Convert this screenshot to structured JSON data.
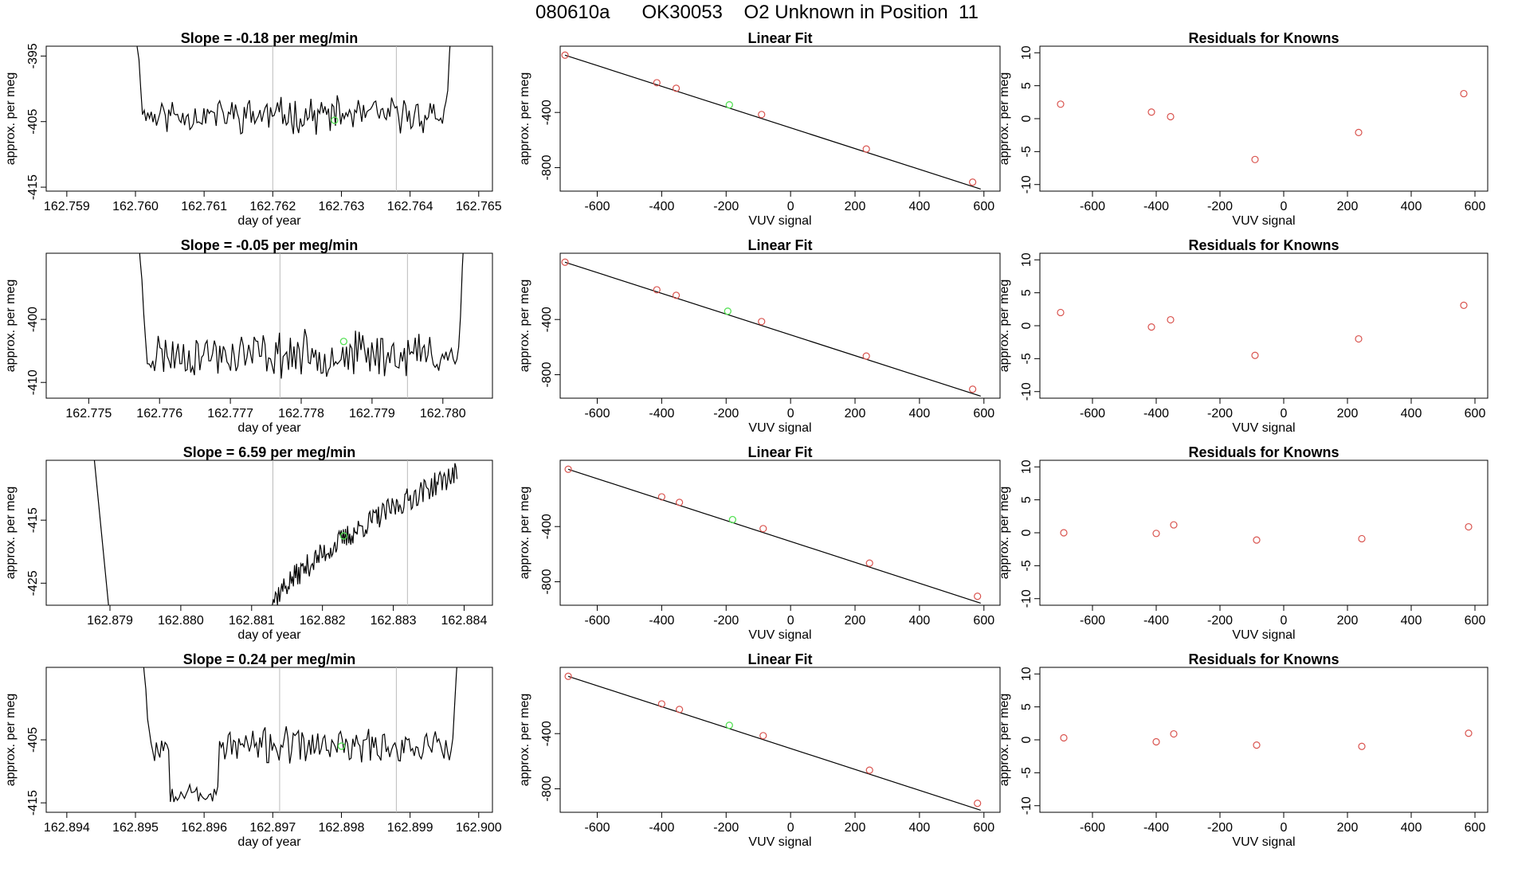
{
  "figure_title": "080610a      OK30053    O2 Unknown in Position  11",
  "colors": {
    "line": "#000000",
    "known": "#d9544f",
    "unknown": "#55e055",
    "guide": "#bbbbbb"
  },
  "chart_data": [
    {
      "type": "line",
      "title": "Slope =  -0.18  per meg/min",
      "xlabel": "day of year",
      "ylabel": "approx. per meg",
      "xlim": [
        162.7587,
        162.7652
      ],
      "ylim": [
        -415.6,
        -393.5
      ],
      "xticks": [
        162.759,
        162.76,
        162.761,
        162.762,
        162.763,
        162.764,
        162.765
      ],
      "xtick_labels": [
        "162.759",
        "162.760",
        "162.761",
        "162.762",
        "162.763",
        "162.764",
        "162.765"
      ],
      "yticks": [
        -395,
        -405,
        -415
      ],
      "ytick_labels": [
        "-395",
        "-405",
        "-415"
      ],
      "vlines": [
        162.762,
        162.7638
      ],
      "unknown_point": {
        "x": 162.7629,
        "y": -404.8
      },
      "trace": {
        "start": 162.76,
        "end": 162.7646,
        "cross_in": 162.76012,
        "cross_out": 162.76452,
        "mean": -404.0,
        "amp": 2.1,
        "seed": 11
      }
    },
    {
      "type": "scatter",
      "title": "Linear Fit",
      "xlabel": "VUV signal",
      "ylabel": "approx. per meg",
      "xlim": [
        -715,
        650
      ],
      "ylim": [
        -970,
        80
      ],
      "xticks": [
        -600,
        -400,
        -200,
        0,
        200,
        400,
        600
      ],
      "xtick_labels": [
        "-600",
        "-400",
        "-200",
        "0",
        "200",
        "400",
        "600"
      ],
      "yticks": [
        -400,
        -800
      ],
      "ytick_labels": [
        "-400",
        "-800"
      ],
      "fit_line": [
        [
          -700,
          15
        ],
        [
          590,
          -955
        ]
      ],
      "knowns": [
        [
          -700,
          15
        ],
        [
          -415,
          -185
        ],
        [
          -355,
          -225
        ],
        [
          -90,
          -415
        ],
        [
          235,
          -665
        ],
        [
          565,
          -905
        ]
      ],
      "unknown": [
        [
          -190,
          -345
        ]
      ]
    },
    {
      "type": "scatter",
      "title": "Residuals for Knowns",
      "xlabel": "VUV signal",
      "ylabel": "approx. per meg",
      "xlim": [
        -765,
        640
      ],
      "ylim": [
        -11,
        11
      ],
      "xticks": [
        -600,
        -400,
        -200,
        0,
        200,
        400,
        600
      ],
      "xtick_labels": [
        "-600",
        "-400",
        "-200",
        "0",
        "200",
        "400",
        "600"
      ],
      "yticks": [
        10,
        5,
        0,
        -5,
        -10
      ],
      "ytick_labels": [
        "10",
        "5",
        "0",
        "-5",
        "-10"
      ],
      "knowns": [
        [
          -700,
          2.2
        ],
        [
          -415,
          1.0
        ],
        [
          -355,
          0.3
        ],
        [
          -90,
          -6.2
        ],
        [
          235,
          -2.1
        ],
        [
          565,
          3.8
        ]
      ]
    },
    {
      "type": "line",
      "title": "Slope =  -0.05  per meg/min",
      "xlabel": "day of year",
      "ylabel": "approx. per meg",
      "xlim": [
        162.7744,
        162.7807
      ],
      "ylim": [
        -412.5,
        -389.5
      ],
      "xticks": [
        162.775,
        162.776,
        162.777,
        162.778,
        162.779,
        162.78
      ],
      "xtick_labels": [
        "162.775",
        "162.776",
        "162.777",
        "162.778",
        "162.779",
        "162.780"
      ],
      "yticks": [
        -400,
        -410
      ],
      "ytick_labels": [
        "-400",
        "-410"
      ],
      "vlines": [
        162.7777,
        162.7795
      ],
      "unknown_point": {
        "x": 162.7786,
        "y": -403.5
      },
      "trace": {
        "start": 162.7757,
        "end": 162.7803,
        "cross_in": 162.77582,
        "cross_out": 162.78022,
        "mean": -405.5,
        "amp": 2.8,
        "seed": 23
      }
    },
    {
      "type": "scatter",
      "title": "Linear Fit",
      "xlabel": "VUV signal",
      "ylabel": "approx. per meg",
      "xlim": [
        -715,
        650
      ],
      "ylim": [
        -970,
        80
      ],
      "xticks": [
        -600,
        -400,
        -200,
        0,
        200,
        400,
        600
      ],
      "xtick_labels": [
        "-600",
        "-400",
        "-200",
        "0",
        "200",
        "400",
        "600"
      ],
      "yticks": [
        -400,
        -800
      ],
      "ytick_labels": [
        "-400",
        "-800"
      ],
      "fit_line": [
        [
          -700,
          15
        ],
        [
          590,
          -955
        ]
      ],
      "knowns": [
        [
          -700,
          15
        ],
        [
          -415,
          -185
        ],
        [
          -355,
          -225
        ],
        [
          -90,
          -415
        ],
        [
          235,
          -665
        ],
        [
          565,
          -905
        ]
      ],
      "unknown": [
        [
          -195,
          -340
        ]
      ]
    },
    {
      "type": "scatter",
      "title": "Residuals for Knowns",
      "xlabel": "VUV signal",
      "ylabel": "approx. per meg",
      "xlim": [
        -765,
        640
      ],
      "ylim": [
        -11,
        11
      ],
      "xticks": [
        -600,
        -400,
        -200,
        0,
        200,
        400,
        600
      ],
      "xtick_labels": [
        "-600",
        "-400",
        "-200",
        "0",
        "200",
        "400",
        "600"
      ],
      "yticks": [
        10,
        5,
        0,
        -5,
        -10
      ],
      "ytick_labels": [
        "10",
        "5",
        "0",
        "-5",
        "-10"
      ],
      "knowns": [
        [
          -700,
          2.0
        ],
        [
          -415,
          -0.2
        ],
        [
          -355,
          0.9
        ],
        [
          -90,
          -4.5
        ],
        [
          235,
          -2.0
        ],
        [
          565,
          3.1
        ]
      ]
    },
    {
      "type": "line",
      "title": "Slope =  6.59  per meg/min",
      "xlabel": "day of year",
      "ylabel": "approx. per meg",
      "xlim": [
        162.8781,
        162.8844
      ],
      "ylim": [
        -428.5,
        -405.5
      ],
      "xticks": [
        162.879,
        162.88,
        162.881,
        162.882,
        162.883,
        162.884
      ],
      "xtick_labels": [
        "162.879",
        "162.880",
        "162.881",
        "162.882",
        "162.883",
        "162.884"
      ],
      "yticks": [
        -415,
        -425
      ],
      "ytick_labels": [
        "-415",
        "-425"
      ],
      "vlines": [
        162.8813,
        162.8832
      ],
      "unknown_point": {
        "x": 162.8823,
        "y": -417.5
      },
      "trace": {
        "start": 162.8812,
        "end": 162.8839,
        "from": -430,
        "to": -407.5,
        "amp": 1.2,
        "seed": 37
      },
      "steep_segment": [
        [
          162.87878,
          -405.5
        ],
        [
          162.87898,
          -428.5
        ]
      ]
    },
    {
      "type": "scatter",
      "title": "Linear Fit",
      "xlabel": "VUV signal",
      "ylabel": "approx. per meg",
      "xlim": [
        -715,
        650
      ],
      "ylim": [
        -970,
        80
      ],
      "xticks": [
        -600,
        -400,
        -200,
        0,
        200,
        400,
        600
      ],
      "xtick_labels": [
        "-600",
        "-400",
        "-200",
        "0",
        "200",
        "400",
        "600"
      ],
      "yticks": [
        -400,
        -800
      ],
      "ytick_labels": [
        "-400",
        "-800"
      ],
      "fit_line": [
        [
          -690,
          15
        ],
        [
          590,
          -955
        ]
      ],
      "knowns": [
        [
          -690,
          15
        ],
        [
          -400,
          -185
        ],
        [
          -345,
          -225
        ],
        [
          -85,
          -415
        ],
        [
          245,
          -665
        ],
        [
          580,
          -905
        ]
      ],
      "unknown": [
        [
          -180,
          -350
        ]
      ]
    },
    {
      "type": "scatter",
      "title": "Residuals for Knowns",
      "xlabel": "VUV signal",
      "ylabel": "approx. per meg",
      "xlim": [
        -765,
        640
      ],
      "ylim": [
        -11,
        11
      ],
      "xticks": [
        -600,
        -400,
        -200,
        0,
        200,
        400,
        600
      ],
      "xtick_labels": [
        "-600",
        "-400",
        "-200",
        "0",
        "200",
        "400",
        "600"
      ],
      "knowns": [
        [
          -690,
          0.0
        ],
        [
          -400,
          -0.1
        ],
        [
          -345,
          1.2
        ],
        [
          -85,
          -1.1
        ],
        [
          245,
          -0.9
        ],
        [
          580,
          0.9
        ]
      ],
      "yticks": [
        10,
        5,
        0,
        -5,
        -10
      ],
      "ytick_labels": [
        "10",
        "5",
        "0",
        "-5",
        "-10"
      ]
    },
    {
      "type": "line",
      "title": "Slope =  0.24  per meg/min",
      "xlabel": "day of year",
      "ylabel": "approx. per meg",
      "xlim": [
        162.8937,
        162.9002
      ],
      "ylim": [
        -416.5,
        -393.5
      ],
      "xticks": [
        162.894,
        162.895,
        162.896,
        162.897,
        162.898,
        162.899,
        162.9
      ],
      "xtick_labels": [
        "162.894",
        "162.895",
        "162.896",
        "162.897",
        "162.898",
        "162.899",
        "162.900"
      ],
      "yticks": [
        -405,
        -415
      ],
      "ytick_labels": [
        "-405",
        "-415"
      ],
      "vlines": [
        162.8971,
        162.8988
      ],
      "unknown_point": {
        "x": 162.898,
        "y": -406.0
      },
      "trace": {
        "start": 162.8951,
        "end": 162.8997,
        "cross_in": 162.89522,
        "cross_out": 162.89962,
        "mean": -406.0,
        "amp": 2.2,
        "seed": 53,
        "dip": [
          162.8955,
          162.8962,
          -413.5
        ]
      }
    },
    {
      "type": "scatter",
      "title": "Linear Fit",
      "xlabel": "VUV signal",
      "ylabel": "approx. per meg",
      "xlim": [
        -715,
        650
      ],
      "ylim": [
        -970,
        80
      ],
      "xticks": [
        -600,
        -400,
        -200,
        0,
        200,
        400,
        600
      ],
      "xtick_labels": [
        "-600",
        "-400",
        "-200",
        "0",
        "200",
        "400",
        "600"
      ],
      "yticks": [
        -400,
        -800
      ],
      "ytick_labels": [
        "-400",
        "-800"
      ],
      "fit_line": [
        [
          -690,
          15
        ],
        [
          590,
          -955
        ]
      ],
      "knowns": [
        [
          -690,
          15
        ],
        [
          -400,
          -185
        ],
        [
          -345,
          -225
        ],
        [
          -85,
          -415
        ],
        [
          245,
          -665
        ],
        [
          580,
          -905
        ]
      ],
      "unknown": [
        [
          -190,
          -340
        ]
      ]
    },
    {
      "type": "scatter",
      "title": "Residuals for Knowns",
      "xlabel": "VUV signal",
      "ylabel": "approx. per meg",
      "xlim": [
        -765,
        640
      ],
      "ylim": [
        -11,
        11
      ],
      "xticks": [
        -600,
        -400,
        -200,
        0,
        200,
        400,
        600
      ],
      "xtick_labels": [
        "-600",
        "-400",
        "-200",
        "0",
        "200",
        "400",
        "600"
      ],
      "yticks": [
        10,
        5,
        0,
        -5,
        -10
      ],
      "ytick_labels": [
        "10",
        "5",
        "0",
        "-5",
        "-10"
      ],
      "knowns": [
        [
          -690,
          0.3
        ],
        [
          -400,
          -0.3
        ],
        [
          -345,
          0.9
        ],
        [
          -85,
          -0.8
        ],
        [
          245,
          -1.0
        ],
        [
          580,
          1.0
        ]
      ]
    }
  ]
}
